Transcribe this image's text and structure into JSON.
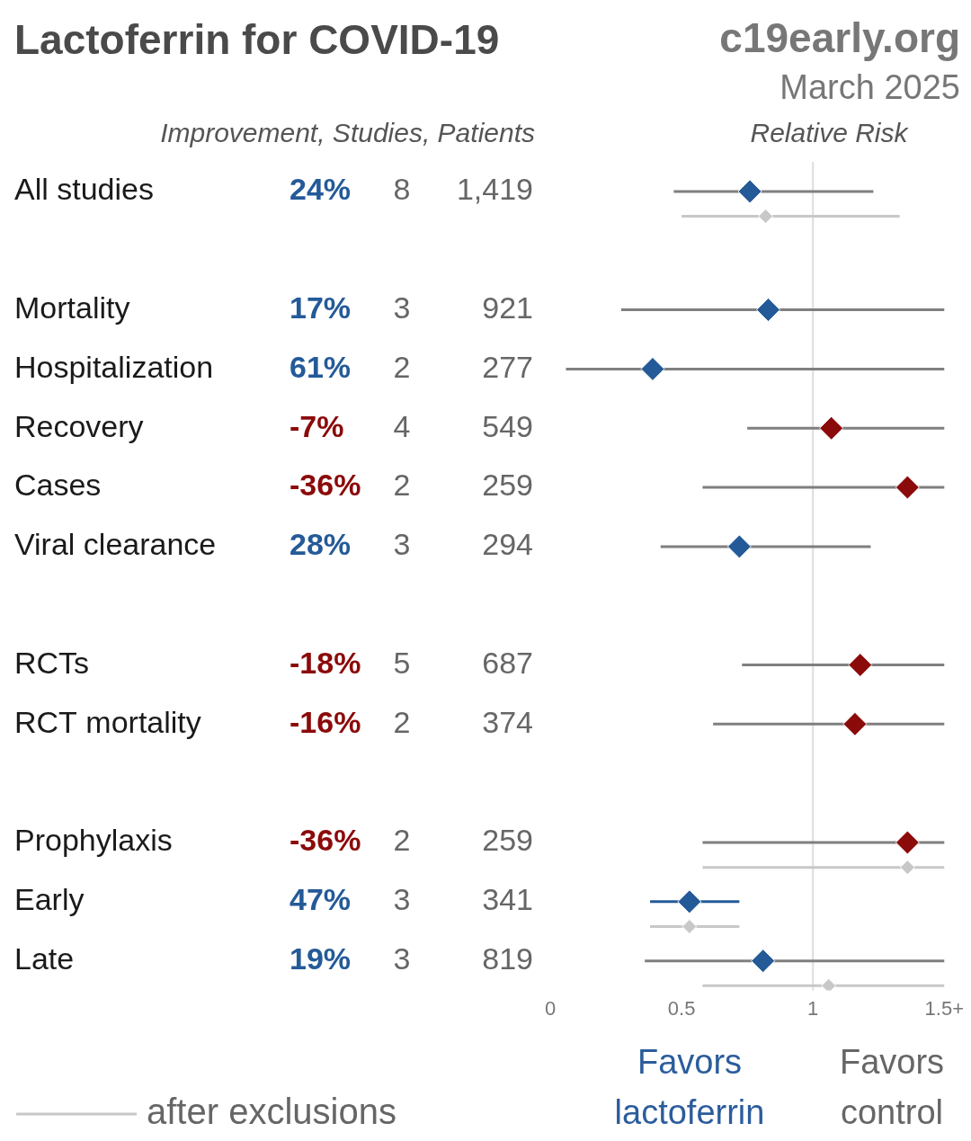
{
  "chart_data": {
    "type": "forest",
    "title": "Lactoferrin for COVID-19",
    "source": "c19early.org",
    "date": "March 2025",
    "column_header": "Improvement, Studies, Patients",
    "x_label": "Relative Risk",
    "favors_left": [
      "Favors",
      "lactoferrin"
    ],
    "favors_right": [
      "Favors",
      "control"
    ],
    "exclusions": {
      "label": "after exclusions",
      "color": "#c8c8c8"
    },
    "xlim": [
      0,
      1.5
    ],
    "xticks": [
      0,
      0.5,
      1,
      {
        "value": 1.5,
        "label": "1.5+"
      }
    ],
    "reference_line": 1,
    "grid": false,
    "tick_labels": "x",
    "marker": "diamond",
    "rows": [
      {
        "label": "All studies",
        "improvement": {
          "value": 24,
          "label": "24%"
        },
        "studies": 8,
        "patients": {
          "value": 1419,
          "label": "1,419"
        },
        "rr": 0.76,
        "ci": {
          "values": [
            0.47,
            1.23
          ],
          "color": "#7f7f7f"
        },
        "color": "#245a98",
        "after_exclusions": {
          "rr": 0.82,
          "ci": [
            0.5,
            1.33
          ]
        }
      },
      null,
      {
        "label": "Mortality",
        "improvement": {
          "value": 17,
          "label": "17%"
        },
        "studies": 3,
        "patients": 921,
        "rr": 0.83,
        "ci": {
          "values": [
            0.27,
            1.7
          ],
          "color": "#7f7f7f"
        },
        "color": "#245a98"
      },
      {
        "label": "Hospitalization",
        "improvement": {
          "value": 61,
          "label": "61%"
        },
        "studies": 2,
        "patients": 277,
        "rr": 0.39,
        "ci": {
          "values": [
            0.06,
            2.4
          ],
          "color": "#7f7f7f"
        },
        "color": "#245a98"
      },
      {
        "label": "Recovery",
        "improvement": {
          "value": -7,
          "label": "-7%"
        },
        "studies": 4,
        "patients": 549,
        "rr": 1.07,
        "ci": {
          "values": [
            0.75,
            1.53
          ],
          "color": "#7f7f7f"
        },
        "color": "#8b0a0a"
      },
      {
        "label": "Cases",
        "improvement": {
          "value": -36,
          "label": "-36%"
        },
        "studies": 2,
        "patients": 259,
        "rr": 1.36,
        "ci": {
          "values": [
            0.58,
            2.2
          ],
          "color": "#7f7f7f"
        },
        "color": "#8b0a0a"
      },
      {
        "label": "Viral clearance",
        "improvement": {
          "value": 28,
          "label": "28%"
        },
        "studies": 3,
        "patients": 294,
        "rr": 0.72,
        "ci": {
          "values": [
            0.42,
            1.22
          ],
          "color": "#7f7f7f"
        },
        "color": "#245a98"
      },
      null,
      {
        "label": "RCTs",
        "improvement": {
          "value": -18,
          "label": "-18%"
        },
        "studies": 5,
        "patients": 687,
        "rr": 1.18,
        "ci": {
          "values": [
            0.73,
            1.9
          ],
          "color": "#7f7f7f"
        },
        "color": "#8b0a0a"
      },
      {
        "label": "RCT mortality",
        "improvement": {
          "value": -16,
          "label": "-16%"
        },
        "studies": 2,
        "patients": 374,
        "rr": 1.16,
        "ci": {
          "values": [
            0.62,
            2.2
          ],
          "color": "#7f7f7f"
        },
        "color": "#8b0a0a"
      },
      null,
      {
        "label": "Prophylaxis",
        "improvement": {
          "value": -36,
          "label": "-36%"
        },
        "studies": 2,
        "patients": 259,
        "rr": 1.36,
        "ci": {
          "values": [
            0.58,
            2.2
          ],
          "color": "#7f7f7f"
        },
        "color": "#8b0a0a",
        "after_exclusions": {
          "rr": 1.36,
          "ci": [
            0.58,
            2.2
          ]
        }
      },
      {
        "label": "Early",
        "improvement": {
          "value": 47,
          "label": "47%"
        },
        "studies": 3,
        "patients": 341,
        "rr": 0.53,
        "ci": {
          "values": [
            0.38,
            0.72
          ],
          "color": "#245a98"
        },
        "color": "#245a98",
        "after_exclusions": {
          "rr": 0.53,
          "ci": [
            0.38,
            0.72
          ]
        }
      },
      {
        "label": "Late",
        "improvement": {
          "value": 19,
          "label": "19%"
        },
        "studies": 3,
        "patients": 819,
        "rr": 0.81,
        "ci": {
          "values": [
            0.36,
            1.7
          ],
          "color": "#7f7f7f"
        },
        "color": "#245a98",
        "after_exclusions": {
          "rr": 1.06,
          "ci": [
            0.58,
            1.8
          ]
        }
      }
    ]
  }
}
